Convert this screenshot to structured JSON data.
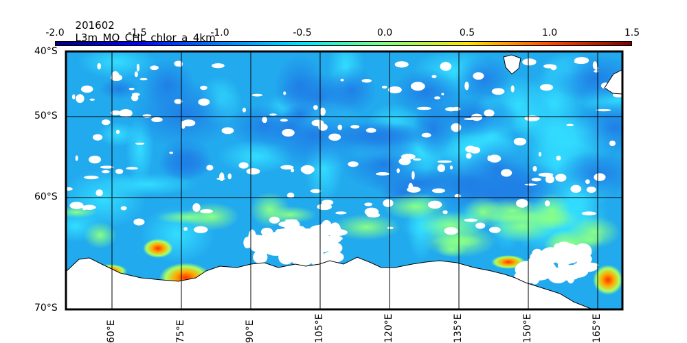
{
  "title": {
    "date": "201602",
    "product": "L3m_MO_CHL_chlor_a_4km"
  },
  "colorbar": {
    "ticks": [
      "-2.0",
      "-1.5",
      "-1.0",
      "-0.5",
      "0.0",
      "0.5",
      "1.0",
      "1.5"
    ],
    "range": [
      -2.0,
      1.5
    ],
    "colors": [
      "#00007f",
      "#0000ff",
      "#0080ff",
      "#00e5ff",
      "#7fff7f",
      "#ffe500",
      "#ff4c00",
      "#7f0000"
    ]
  },
  "map": {
    "lat_labels": [
      "40°S",
      "50°S",
      "60°S",
      "70°S"
    ],
    "lon_labels": [
      "60°E",
      "75°E",
      "90°E",
      "105°E",
      "120°E",
      "135°E",
      "150°E",
      "165°E"
    ],
    "ocean_color": "#22aaee",
    "land_color": "#ffffff"
  }
}
